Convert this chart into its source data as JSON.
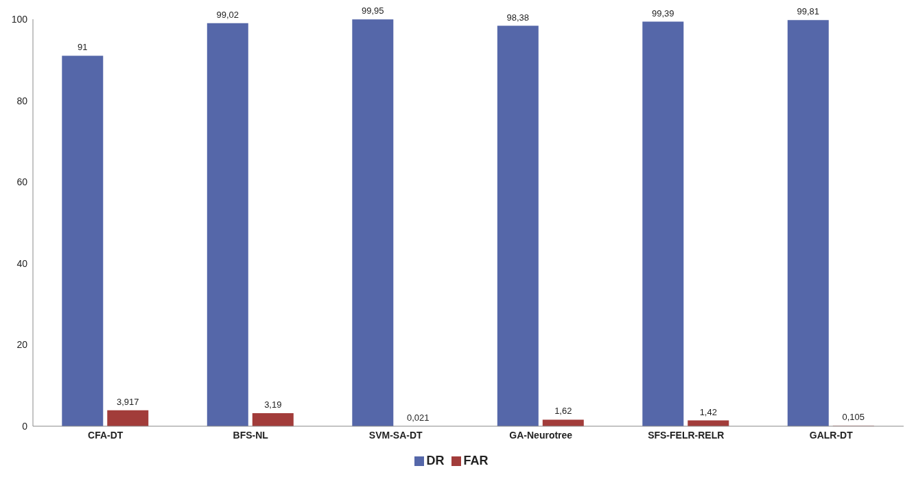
{
  "chart_data": {
    "type": "bar",
    "categories": [
      "CFA-DT",
      "BFS-NL",
      "SVM-SA-DT",
      "GA-Neurotree",
      "SFS-FELR-RELR",
      "GALR-DT"
    ],
    "series": [
      {
        "name": "DR",
        "color": "#5567a9",
        "values": [
          91,
          99.02,
          99.95,
          98.38,
          99.39,
          99.81
        ],
        "value_labels": [
          "91",
          "99,02",
          "99,95",
          "98,38",
          "99,39",
          "99,81"
        ]
      },
      {
        "name": "FAR",
        "color": "#a23c3a",
        "values": [
          3.917,
          3.19,
          0.021,
          1.62,
          1.42,
          0.105
        ],
        "value_labels": [
          "3,917",
          "3,19",
          "0,021",
          "1,62",
          "1,42",
          "0,105"
        ]
      }
    ],
    "ylim": [
      0,
      100
    ],
    "yticks": [
      0,
      20,
      40,
      60,
      80,
      100
    ],
    "grid": false,
    "legend": "bottom"
  }
}
